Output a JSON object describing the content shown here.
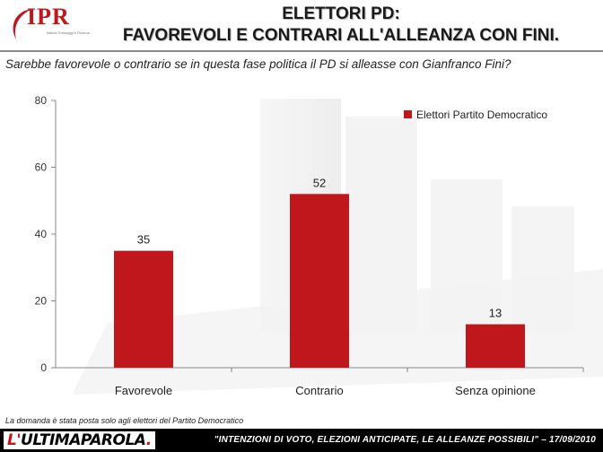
{
  "header": {
    "logo_text": "IPR",
    "logo_subtext": "Istituto Sondaggi e Ricerca",
    "title_line1": "ELETTORI PD:",
    "title_line2": "FAVOREVOLI E CONTRARI ALL'ALLEANZA CON FINI."
  },
  "question": "Sarebbe favorevole o contrario se in questa fase politica il PD si alleasse con Gianfranco Fini?",
  "footnote": "La domanda è stata posta solo agli elettori del Partito Democratico",
  "footer": {
    "brand_prefix": "L'",
    "brand_main": "ULTIMAPAROLA",
    "brand_suffix": ".",
    "text": "\"INTENZIONI DI VOTO, ELEZIONI ANTICIPATE, LE ALLEANZE POSSIBILI\" – 17/09/2010"
  },
  "colors": {
    "bar": "#c0171c",
    "brand_red": "#c0171c"
  },
  "chart_data": {
    "type": "bar",
    "categories": [
      "Favorevole",
      "Contrario",
      "Senza opinione"
    ],
    "series": [
      {
        "name": "Elettori Partito Democratico",
        "values": [
          35,
          52,
          13
        ]
      }
    ],
    "ylim": [
      0,
      80
    ],
    "yticks": [
      0,
      20,
      40,
      60,
      80
    ],
    "data_labels": true,
    "legend": "top-right",
    "grid": false
  }
}
